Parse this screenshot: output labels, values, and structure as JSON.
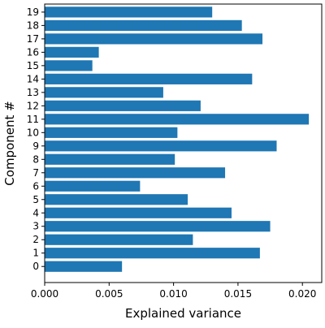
{
  "chart_data": {
    "type": "bar",
    "orientation": "horizontal",
    "xlabel": "Explained variance",
    "ylabel": "Component #",
    "xlim": [
      0,
      0.0215
    ],
    "ylim": [
      -1.2,
      19.6
    ],
    "x_ticks": [
      "0.000",
      "0.005",
      "0.010",
      "0.015",
      "0.020"
    ],
    "x_tick_values": [
      0,
      0.005,
      0.01,
      0.015,
      0.02
    ],
    "categories": [
      "0",
      "1",
      "2",
      "3",
      "4",
      "5",
      "6",
      "7",
      "8",
      "9",
      "10",
      "11",
      "12",
      "13",
      "14",
      "15",
      "16",
      "17",
      "18",
      "19"
    ],
    "values": [
      0.006,
      0.0167,
      0.0115,
      0.0175,
      0.0145,
      0.0111,
      0.0074,
      0.014,
      0.0101,
      0.018,
      0.0103,
      0.0205,
      0.0121,
      0.0092,
      0.0161,
      0.0037,
      0.0042,
      0.0169,
      0.0153,
      0.013
    ],
    "bar_color": "#1f77b4",
    "grid": false,
    "legend": "none"
  }
}
